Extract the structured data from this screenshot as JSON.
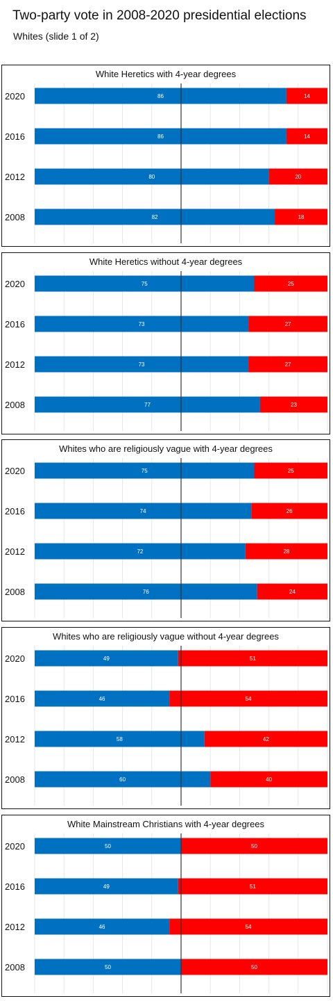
{
  "header": {
    "title": "Two-party vote in 2008-2020 presidential elections",
    "subtitle": "Whites (slide 1 of 2)"
  },
  "colors": {
    "democratic": "#0070c0",
    "republican": "#ff0000",
    "axis": "#333333",
    "grid": "#e6e6e6"
  },
  "chart_data": [
    {
      "type": "bar",
      "title": "White Heretics with 4-year degrees",
      "categories": [
        "2020",
        "2016",
        "2012",
        "2008"
      ],
      "series": [
        {
          "values": [
            86,
            86,
            80,
            82
          ]
        },
        {
          "values": [
            14,
            14,
            20,
            18
          ]
        }
      ],
      "xlim": [
        0,
        100
      ],
      "stacked": true,
      "orientation": "horizontal"
    },
    {
      "type": "bar",
      "title": "White Heretics without 4-year degrees",
      "categories": [
        "2020",
        "2016",
        "2012",
        "2008"
      ],
      "series": [
        {
          "values": [
            75,
            73,
            73,
            77
          ]
        },
        {
          "values": [
            25,
            27,
            27,
            23
          ]
        }
      ],
      "xlim": [
        0,
        100
      ],
      "stacked": true,
      "orientation": "horizontal"
    },
    {
      "type": "bar",
      "title": "Whites who are religiously vague with 4-year degrees",
      "categories": [
        "2020",
        "2016",
        "2012",
        "2008"
      ],
      "series": [
        {
          "values": [
            75,
            74,
            72,
            76
          ]
        },
        {
          "values": [
            25,
            26,
            28,
            24
          ]
        }
      ],
      "xlim": [
        0,
        100
      ],
      "stacked": true,
      "orientation": "horizontal"
    },
    {
      "type": "bar",
      "title": "Whites who are religiously vague without 4-year degrees",
      "categories": [
        "2020",
        "2016",
        "2012",
        "2008"
      ],
      "series": [
        {
          "values": [
            49,
            46,
            58,
            60
          ]
        },
        {
          "values": [
            51,
            54,
            42,
            40
          ]
        }
      ],
      "xlim": [
        0,
        100
      ],
      "stacked": true,
      "orientation": "horizontal"
    },
    {
      "type": "bar",
      "title": "White Mainstream Christians with 4-year degrees",
      "categories": [
        "2020",
        "2016",
        "2012",
        "2008"
      ],
      "series": [
        {
          "values": [
            50,
            49,
            46,
            50
          ]
        },
        {
          "values": [
            50,
            51,
            54,
            50
          ]
        }
      ],
      "xlim": [
        0,
        100
      ],
      "stacked": true,
      "orientation": "horizontal"
    }
  ]
}
